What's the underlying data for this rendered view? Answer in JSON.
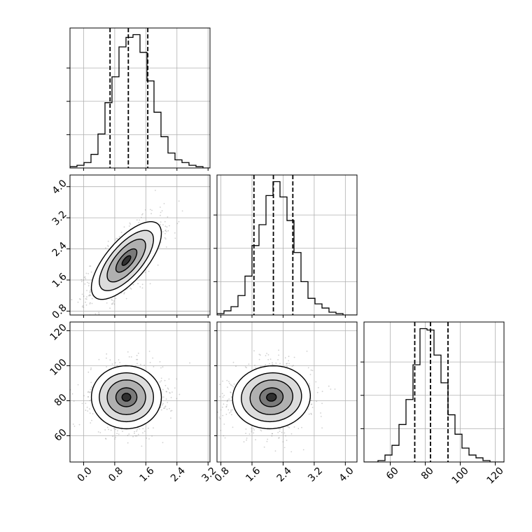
{
  "chart_data": {
    "type": "corner",
    "grid": true,
    "parameters": [
      {
        "name": "",
        "range": [
          -0.35,
          3.25
        ],
        "ticks": [
          "0.0",
          "0.8",
          "1.6",
          "2.4",
          "3.2"
        ],
        "tick_values": [
          0.0,
          0.8,
          1.6,
          2.4,
          3.2
        ]
      },
      {
        "name": "",
        "range": [
          0.7,
          4.3
        ],
        "ticks": [
          "0.8",
          "1.6",
          "2.4",
          "3.2",
          "4.0"
        ],
        "tick_values": [
          0.8,
          1.6,
          2.4,
          3.2,
          4.0
        ]
      },
      {
        "name": "",
        "range": [
          45,
          125
        ],
        "ticks": [
          "60",
          "80",
          "100",
          "120"
        ],
        "tick_values": [
          60,
          80,
          100,
          120
        ]
      }
    ],
    "quantiles": [
      [
        0.68,
        1.15,
        1.65
      ],
      [
        1.65,
        2.15,
        2.65
      ],
      [
        74,
        83,
        93
      ]
    ],
    "histograms": [
      {
        "param": 0,
        "edges_start": -0.35,
        "bin_width": 0.18,
        "values": [
          1,
          2,
          4,
          10,
          25,
          48,
          67,
          89,
          96,
          98,
          85,
          64,
          41,
          23,
          11,
          6,
          4,
          2,
          1,
          0
        ]
      },
      {
        "param": 1,
        "edges_start": 0.7,
        "bin_width": 0.18,
        "values": [
          1,
          3,
          6,
          14,
          28,
          50,
          65,
          86,
          96,
          85,
          68,
          45,
          24,
          12,
          8,
          5,
          2,
          1,
          0,
          0
        ]
      },
      {
        "param": 2,
        "edges_start": 45,
        "bin_width": 4,
        "values": [
          0,
          0,
          1,
          5,
          12,
          27,
          45,
          70,
          96,
          95,
          77,
          57,
          34,
          20,
          10,
          5,
          3,
          1,
          0,
          0
        ]
      }
    ],
    "scatter_2d": [
      {
        "row": 1,
        "col": 0,
        "mean": [
          1.1,
          2.1
        ],
        "sd": [
          0.45,
          0.5
        ],
        "corr": 0.7
      },
      {
        "row": 2,
        "col": 0,
        "mean": [
          1.1,
          82
        ],
        "sd": [
          0.45,
          9
        ],
        "corr": 0.0
      },
      {
        "row": 2,
        "col": 1,
        "mean": [
          2.1,
          82
        ],
        "sd": [
          0.5,
          9
        ],
        "corr": 0.05
      }
    ]
  }
}
